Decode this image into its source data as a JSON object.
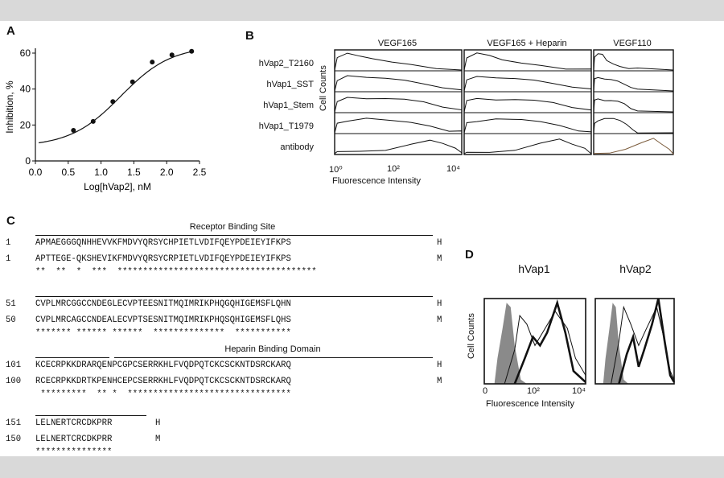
{
  "panelA": {
    "letter": "A",
    "chart_data": {
      "type": "scatter",
      "xlabel": "Log[hVap2], nM",
      "ylabel": "Inhibition, %",
      "xlim": [
        0.0,
        2.5
      ],
      "ylim": [
        0,
        60
      ],
      "xticks": [
        "0.0",
        "0.5",
        "1.0",
        "1.5",
        "2.0",
        "2.5"
      ],
      "yticks": [
        "0",
        "20",
        "40",
        "60"
      ],
      "points": [
        [
          0.58,
          17
        ],
        [
          0.88,
          22
        ],
        [
          1.18,
          33
        ],
        [
          1.48,
          44
        ],
        [
          1.78,
          55
        ],
        [
          2.08,
          59
        ],
        [
          2.38,
          61
        ]
      ],
      "fit": "sigmoidal"
    }
  },
  "panelB": {
    "letter": "B",
    "columns": [
      "VEGF165",
      "VEGF165 + Heparin",
      "VEGF110"
    ],
    "rows": [
      "hVap2_T2160",
      "hVap1_SST",
      "hVap1_Stem",
      "hVap1_T1979",
      "antibody"
    ],
    "ylabel": "Cell Counts",
    "xlabel": "Fluorescence Intensity",
    "xticks": [
      "10⁰",
      "10²",
      "10⁴"
    ]
  },
  "panelC": {
    "letter": "C",
    "annotations": {
      "receptor": "Receptor Binding Site",
      "heparin": "Heparin Binding Domain"
    },
    "blocks": [
      {
        "h_num": "1",
        "h_seq": "APMAEGGGQNHHEVVKFMDVYQRSYCHPIETLVDIFQEYPDEIEYIFKPS",
        "h_tag": "H",
        "m_num": "1",
        "m_seq": "APTTEGE-QKSHEVIKFMDVYQRSYCRPIETLVDIFQEYPDEIEYIFKPS",
        "m_tag": "M",
        "cons": "**  **  *  ***  ***************************************"
      },
      {
        "h_num": "51",
        "h_seq": "CVPLMRCGGCCNDEGLECVPTEESNITMQIMRIKPHQGQHIGEMSFLQHN",
        "h_tag": "H",
        "m_num": "50",
        "m_seq": "CVPLMRCAGCCNDEALECVPTSESNITMQIMRIKPHQSQHIGEMSFLQHS",
        "m_tag": "M",
        "cons": "******* ****** ******  **************  ***********"
      },
      {
        "h_num": "101",
        "h_seq": "KCECRPKKDRARQENPCGPCSERRKHLFVQDPQTCKCSCKNTDSRCKARQ",
        "h_tag": "H",
        "m_num": "100",
        "m_seq": "RCECRPKKDRTKPENHCEPCSERRKHLFVQDPQTCKCSCKNTDSRCKARQ",
        "m_tag": "M",
        "cons": " *********  ** *  ********************************"
      },
      {
        "h_num": "151",
        "h_seq": "LELNERTCRCDKPRR",
        "h_tag": "H",
        "m_num": "150",
        "m_seq": "LELNERTCRCDKPRR",
        "m_tag": "M",
        "cons": "***************"
      }
    ]
  },
  "panelD": {
    "letter": "D",
    "titles": [
      "hVap1",
      "hVap2"
    ],
    "ylabel": "Cell Counts",
    "xlabel": "Fluorescence Intensity",
    "xticks": [
      "0",
      "10²",
      "10⁴"
    ]
  }
}
